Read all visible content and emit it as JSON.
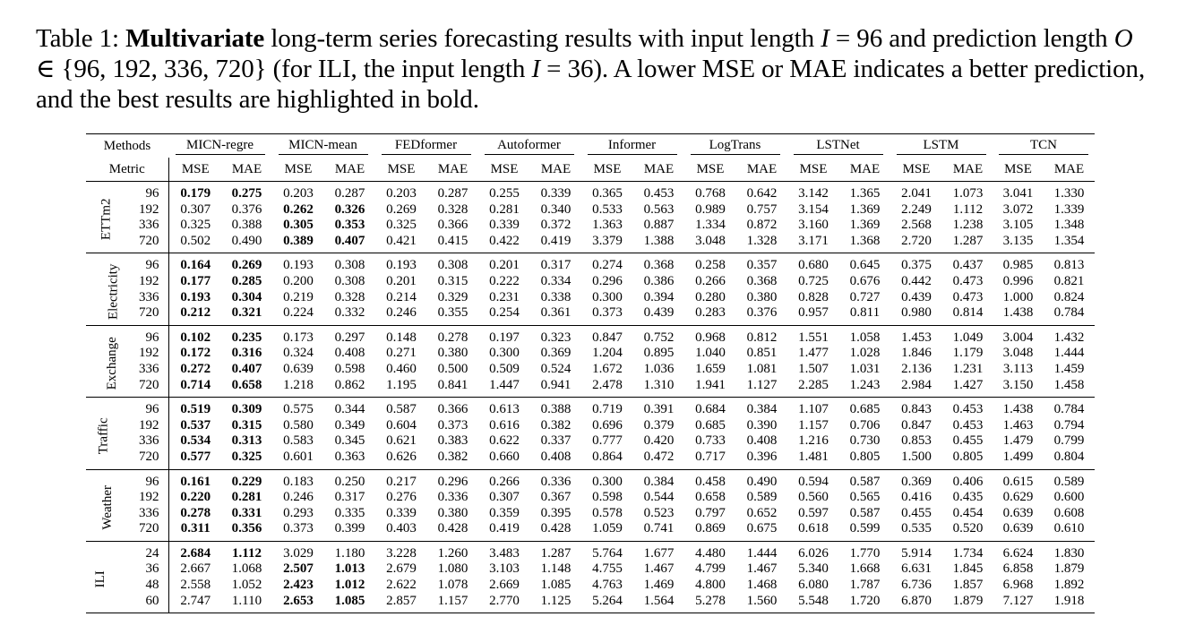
{
  "caption": {
    "prefix": "Table 1: ",
    "bold": "Multivariate",
    "part1": " long-term series forecasting results with input length ",
    "var_i": "I",
    "part2": " = 96 and prediction length ",
    "var_o": "O",
    "part3": " ∈ {96, 192, 336, 720} (for ILI, the input length ",
    "var_i2": "I",
    "part4": " = 36). A lower MSE or MAE indicates a better prediction, and the best results are highlighted in bold."
  },
  "table": {
    "methods_label": "Methods",
    "metric_label": "Metric",
    "methods": [
      "MICN-regre",
      "MICN-mean",
      "FEDformer",
      "Autoformer",
      "Informer",
      "LogTrans",
      "LSTNet",
      "LSTM",
      "TCN"
    ],
    "metrics": [
      "MSE",
      "MAE"
    ],
    "groups": [
      {
        "dataset": "ETTm2",
        "rows": [
          {
            "h": "96",
            "v": [
              "0.179",
              "0.275",
              "0.203",
              "0.287",
              "0.203",
              "0.287",
              "0.255",
              "0.339",
              "0.365",
              "0.453",
              "0.768",
              "0.642",
              "3.142",
              "1.365",
              "2.041",
              "1.073",
              "3.041",
              "1.330"
            ],
            "b": [
              0,
              1
            ]
          },
          {
            "h": "192",
            "v": [
              "0.307",
              "0.376",
              "0.262",
              "0.326",
              "0.269",
              "0.328",
              "0.281",
              "0.340",
              "0.533",
              "0.563",
              "0.989",
              "0.757",
              "3.154",
              "1.369",
              "2.249",
              "1.112",
              "3.072",
              "1.339"
            ],
            "b": [
              2,
              3
            ]
          },
          {
            "h": "336",
            "v": [
              "0.325",
              "0.388",
              "0.305",
              "0.353",
              "0.325",
              "0.366",
              "0.339",
              "0.372",
              "1.363",
              "0.887",
              "1.334",
              "0.872",
              "3.160",
              "1.369",
              "2.568",
              "1.238",
              "3.105",
              "1.348"
            ],
            "b": [
              2,
              3
            ]
          },
          {
            "h": "720",
            "v": [
              "0.502",
              "0.490",
              "0.389",
              "0.407",
              "0.421",
              "0.415",
              "0.422",
              "0.419",
              "3.379",
              "1.388",
              "3.048",
              "1.328",
              "3.171",
              "1.368",
              "2.720",
              "1.287",
              "3.135",
              "1.354"
            ],
            "b": [
              2,
              3
            ]
          }
        ]
      },
      {
        "dataset": "Electricity",
        "rows": [
          {
            "h": "96",
            "v": [
              "0.164",
              "0.269",
              "0.193",
              "0.308",
              "0.193",
              "0.308",
              "0.201",
              "0.317",
              "0.274",
              "0.368",
              "0.258",
              "0.357",
              "0.680",
              "0.645",
              "0.375",
              "0.437",
              "0.985",
              "0.813"
            ],
            "b": [
              0,
              1
            ]
          },
          {
            "h": "192",
            "v": [
              "0.177",
              "0.285",
              "0.200",
              "0.308",
              "0.201",
              "0.315",
              "0.222",
              "0.334",
              "0.296",
              "0.386",
              "0.266",
              "0.368",
              "0.725",
              "0.676",
              "0.442",
              "0.473",
              "0.996",
              "0.821"
            ],
            "b": [
              0,
              1
            ]
          },
          {
            "h": "336",
            "v": [
              "0.193",
              "0.304",
              "0.219",
              "0.328",
              "0.214",
              "0.329",
              "0.231",
              "0.338",
              "0.300",
              "0.394",
              "0.280",
              "0.380",
              "0.828",
              "0.727",
              "0.439",
              "0.473",
              "1.000",
              "0.824"
            ],
            "b": [
              0,
              1
            ]
          },
          {
            "h": "720",
            "v": [
              "0.212",
              "0.321",
              "0.224",
              "0.332",
              "0.246",
              "0.355",
              "0.254",
              "0.361",
              "0.373",
              "0.439",
              "0.283",
              "0.376",
              "0.957",
              "0.811",
              "0.980",
              "0.814",
              "1.438",
              "0.784"
            ],
            "b": [
              0,
              1
            ]
          }
        ]
      },
      {
        "dataset": "Exchange",
        "rows": [
          {
            "h": "96",
            "v": [
              "0.102",
              "0.235",
              "0.173",
              "0.297",
              "0.148",
              "0.278",
              "0.197",
              "0.323",
              "0.847",
              "0.752",
              "0.968",
              "0.812",
              "1.551",
              "1.058",
              "1.453",
              "1.049",
              "3.004",
              "1.432"
            ],
            "b": [
              0,
              1
            ]
          },
          {
            "h": "192",
            "v": [
              "0.172",
              "0.316",
              "0.324",
              "0.408",
              "0.271",
              "0.380",
              "0.300",
              "0.369",
              "1.204",
              "0.895",
              "1.040",
              "0.851",
              "1.477",
              "1.028",
              "1.846",
              "1.179",
              "3.048",
              "1.444"
            ],
            "b": [
              0,
              1
            ]
          },
          {
            "h": "336",
            "v": [
              "0.272",
              "0.407",
              "0.639",
              "0.598",
              "0.460",
              "0.500",
              "0.509",
              "0.524",
              "1.672",
              "1.036",
              "1.659",
              "1.081",
              "1.507",
              "1.031",
              "2.136",
              "1.231",
              "3.113",
              "1.459"
            ],
            "b": [
              0,
              1
            ]
          },
          {
            "h": "720",
            "v": [
              "0.714",
              "0.658",
              "1.218",
              "0.862",
              "1.195",
              "0.841",
              "1.447",
              "0.941",
              "2.478",
              "1.310",
              "1.941",
              "1.127",
              "2.285",
              "1.243",
              "2.984",
              "1.427",
              "3.150",
              "1.458"
            ],
            "b": [
              0,
              1
            ]
          }
        ]
      },
      {
        "dataset": "Traffic",
        "rows": [
          {
            "h": "96",
            "v": [
              "0.519",
              "0.309",
              "0.575",
              "0.344",
              "0.587",
              "0.366",
              "0.613",
              "0.388",
              "0.719",
              "0.391",
              "0.684",
              "0.384",
              "1.107",
              "0.685",
              "0.843",
              "0.453",
              "1.438",
              "0.784"
            ],
            "b": [
              0,
              1
            ]
          },
          {
            "h": "192",
            "v": [
              "0.537",
              "0.315",
              "0.580",
              "0.349",
              "0.604",
              "0.373",
              "0.616",
              "0.382",
              "0.696",
              "0.379",
              "0.685",
              "0.390",
              "1.157",
              "0.706",
              "0.847",
              "0.453",
              "1.463",
              "0.794"
            ],
            "b": [
              0,
              1
            ]
          },
          {
            "h": "336",
            "v": [
              "0.534",
              "0.313",
              "0.583",
              "0.345",
              "0.621",
              "0.383",
              "0.622",
              "0.337",
              "0.777",
              "0.420",
              "0.733",
              "0.408",
              "1.216",
              "0.730",
              "0.853",
              "0.455",
              "1.479",
              "0.799"
            ],
            "b": [
              0,
              1
            ]
          },
          {
            "h": "720",
            "v": [
              "0.577",
              "0.325",
              "0.601",
              "0.363",
              "0.626",
              "0.382",
              "0.660",
              "0.408",
              "0.864",
              "0.472",
              "0.717",
              "0.396",
              "1.481",
              "0.805",
              "1.500",
              "0.805",
              "1.499",
              "0.804"
            ],
            "b": [
              0,
              1
            ]
          }
        ]
      },
      {
        "dataset": "Weather",
        "rows": [
          {
            "h": "96",
            "v": [
              "0.161",
              "0.229",
              "0.183",
              "0.250",
              "0.217",
              "0.296",
              "0.266",
              "0.336",
              "0.300",
              "0.384",
              "0.458",
              "0.490",
              "0.594",
              "0.587",
              "0.369",
              "0.406",
              "0.615",
              "0.589"
            ],
            "b": [
              0,
              1
            ]
          },
          {
            "h": "192",
            "v": [
              "0.220",
              "0.281",
              "0.246",
              "0.317",
              "0.276",
              "0.336",
              "0.307",
              "0.367",
              "0.598",
              "0.544",
              "0.658",
              "0.589",
              "0.560",
              "0.565",
              "0.416",
              "0.435",
              "0.629",
              "0.600"
            ],
            "b": [
              0,
              1
            ]
          },
          {
            "h": "336",
            "v": [
              "0.278",
              "0.331",
              "0.293",
              "0.335",
              "0.339",
              "0.380",
              "0.359",
              "0.395",
              "0.578",
              "0.523",
              "0.797",
              "0.652",
              "0.597",
              "0.587",
              "0.455",
              "0.454",
              "0.639",
              "0.608"
            ],
            "b": [
              0,
              1
            ]
          },
          {
            "h": "720",
            "v": [
              "0.311",
              "0.356",
              "0.373",
              "0.399",
              "0.403",
              "0.428",
              "0.419",
              "0.428",
              "1.059",
              "0.741",
              "0.869",
              "0.675",
              "0.618",
              "0.599",
              "0.535",
              "0.520",
              "0.639",
              "0.610"
            ],
            "b": [
              0,
              1
            ]
          }
        ]
      },
      {
        "dataset": "ILI",
        "rows": [
          {
            "h": "24",
            "v": [
              "2.684",
              "1.112",
              "3.029",
              "1.180",
              "3.228",
              "1.260",
              "3.483",
              "1.287",
              "5.764",
              "1.677",
              "4.480",
              "1.444",
              "6.026",
              "1.770",
              "5.914",
              "1.734",
              "6.624",
              "1.830"
            ],
            "b": [
              0,
              1
            ]
          },
          {
            "h": "36",
            "v": [
              "2.667",
              "1.068",
              "2.507",
              "1.013",
              "2.679",
              "1.080",
              "3.103",
              "1.148",
              "4.755",
              "1.467",
              "4.799",
              "1.467",
              "5.340",
              "1.668",
              "6.631",
              "1.845",
              "6.858",
              "1.879"
            ],
            "b": [
              2,
              3
            ]
          },
          {
            "h": "48",
            "v": [
              "2.558",
              "1.052",
              "2.423",
              "1.012",
              "2.622",
              "1.078",
              "2.669",
              "1.085",
              "4.763",
              "1.469",
              "4.800",
              "1.468",
              "6.080",
              "1.787",
              "6.736",
              "1.857",
              "6.968",
              "1.892"
            ],
            "b": [
              2,
              3
            ]
          },
          {
            "h": "60",
            "v": [
              "2.747",
              "1.110",
              "2.653",
              "1.085",
              "2.857",
              "1.157",
              "2.770",
              "1.125",
              "5.264",
              "1.564",
              "5.278",
              "1.560",
              "5.548",
              "1.720",
              "6.870",
              "1.879",
              "7.127",
              "1.918"
            ],
            "b": [
              2,
              3
            ]
          }
        ]
      }
    ]
  }
}
